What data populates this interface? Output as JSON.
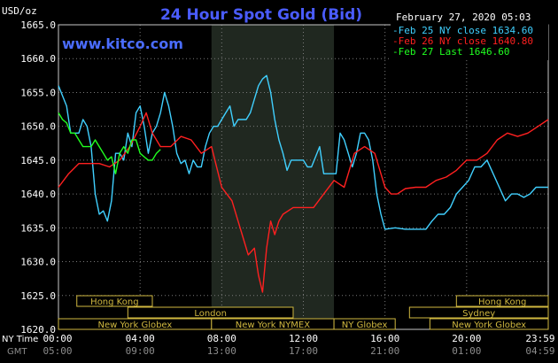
{
  "chart_data": {
    "type": "line",
    "title": "24 Hour Spot Gold (Bid)",
    "watermark": "www.kitco.com",
    "unit_label": "USD/oz",
    "timestamp": "February 27, 2020 05:03",
    "ylim": [
      1620,
      1665
    ],
    "y_ticks": [
      "1665.0",
      "1660.0",
      "1655.0",
      "1650.0",
      "1645.0",
      "1640.0",
      "1635.0",
      "1630.0",
      "1625.0",
      "1620.0"
    ],
    "x_row_labels": {
      "ny": "NY Time",
      "gmt": "GMT"
    },
    "x_ticks_ny": [
      "00:00",
      "04:00",
      "08:00",
      "12:00",
      "16:00",
      "20:00",
      "23:59"
    ],
    "x_ticks_gmt": [
      "05:00",
      "09:00",
      "13:00",
      "17:00",
      "21:00",
      "01:00",
      "04:59"
    ],
    "ny_session_hours": [
      7.5,
      13.5
    ],
    "legend": [
      {
        "label": "Feb 25 NY close 1634.60",
        "color": "#40d0ff"
      },
      {
        "label": "Feb 26 NY close 1640.80",
        "color": "#ff2020"
      },
      {
        "label": "Feb 27 Last 1646.60",
        "color": "#20ff20"
      }
    ],
    "markets": [
      {
        "name": "Hong Kong",
        "start": 0.9,
        "end": 4.6,
        "row": 0
      },
      {
        "name": "London",
        "start": 3.4,
        "end": 11.5,
        "row": 1
      },
      {
        "name": "New York Globex",
        "start": 0,
        "end": 7.5,
        "row": 2
      },
      {
        "name": "New York NYMEX",
        "start": 7.5,
        "end": 13.5,
        "row": 2
      },
      {
        "name": "NY Globex",
        "start": 13.5,
        "end": 16.5,
        "row": 2
      },
      {
        "name": "Hong Kong",
        "start": 19.5,
        "end": 24,
        "row": 0
      },
      {
        "name": "Sydney",
        "start": 17.2,
        "end": 24,
        "row": 1
      },
      {
        "name": "New York Globex",
        "start": 18.2,
        "end": 24,
        "row": 2
      }
    ],
    "series": [
      {
        "name": "Feb 25 NY close 1634.60",
        "color": "#40d0ff",
        "x": [
          0,
          0.2,
          0.4,
          0.6,
          0.8,
          1.0,
          1.2,
          1.4,
          1.6,
          1.8,
          2.0,
          2.2,
          2.4,
          2.6,
          2.8,
          3.0,
          3.2,
          3.4,
          3.6,
          3.8,
          4.0,
          4.2,
          4.4,
          4.6,
          4.8,
          5.0,
          5.2,
          5.4,
          5.6,
          5.8,
          6.0,
          6.2,
          6.4,
          6.6,
          6.8,
          7.0,
          7.2,
          7.4,
          7.6,
          7.8,
          8.0,
          8.2,
          8.4,
          8.6,
          8.8,
          9.0,
          9.2,
          9.4,
          9.6,
          9.8,
          10.0,
          10.2,
          10.4,
          10.6,
          10.8,
          11.0,
          11.2,
          11.4,
          11.6,
          11.8,
          12.0,
          12.2,
          12.4,
          12.6,
          12.8,
          13.0,
          13.2,
          13.4,
          13.6,
          13.8,
          14.0,
          14.2,
          14.4,
          14.6,
          14.8,
          15.0,
          15.2,
          15.4,
          15.6,
          15.8,
          16.0,
          16.5,
          17.0,
          17.5,
          18.0,
          18.3,
          18.6,
          18.9,
          19.2,
          19.5,
          19.8,
          20.1,
          20.4,
          20.7,
          21.0,
          21.3,
          21.6,
          21.9,
          22.2,
          22.5,
          22.8,
          23.1,
          23.4,
          23.7,
          24.0
        ],
        "y": [
          1656,
          1654.5,
          1653,
          1649,
          1649,
          1649,
          1651,
          1650,
          1647,
          1640,
          1637,
          1637.5,
          1636,
          1639,
          1646,
          1646,
          1645,
          1649,
          1647,
          1652,
          1653,
          1650,
          1646,
          1649,
          1650,
          1652,
          1655,
          1653,
          1650,
          1646,
          1644.5,
          1645,
          1643,
          1645,
          1644,
          1644,
          1647,
          1649,
          1650,
          1650,
          1651,
          1652,
          1653,
          1650,
          1651,
          1651,
          1651,
          1652,
          1654,
          1656,
          1657,
          1657.5,
          1655,
          1651,
          1648,
          1646,
          1643.5,
          1645,
          1645,
          1645,
          1645,
          1644,
          1644,
          1645.5,
          1647,
          1643,
          1643,
          1643,
          1643,
          1649,
          1648,
          1646,
          1644,
          1646,
          1649,
          1649,
          1648,
          1645,
          1640,
          1637,
          1634.8,
          1635,
          1634.8,
          1634.8,
          1634.8,
          1636,
          1637,
          1637,
          1638,
          1640,
          1641,
          1642,
          1644,
          1644,
          1645,
          1643,
          1641,
          1639,
          1640,
          1640,
          1639.5,
          1640,
          1641,
          1641,
          1641
        ]
      },
      {
        "name": "Feb 26 NY close 1640.80",
        "color": "#ff2020",
        "x": [
          0,
          0.5,
          1.0,
          1.5,
          2.0,
          2.5,
          3.0,
          3.5,
          4.0,
          4.3,
          4.6,
          5.0,
          5.5,
          6.0,
          6.5,
          7.0,
          7.5,
          8.0,
          8.5,
          9.0,
          9.3,
          9.6,
          9.8,
          10.0,
          10.2,
          10.4,
          10.6,
          10.8,
          11.0,
          11.5,
          12.0,
          12.5,
          13.0,
          13.5,
          14.0,
          14.5,
          15.0,
          15.5,
          16.0,
          16.3,
          16.6,
          17.0,
          17.5,
          18.0,
          18.5,
          19.0,
          19.5,
          20.0,
          20.5,
          21.0,
          21.5,
          22.0,
          22.5,
          23.0,
          23.5,
          24.0
        ],
        "y": [
          1641,
          1643,
          1644.5,
          1644.5,
          1644.5,
          1644,
          1645,
          1647,
          1650,
          1652,
          1649,
          1647,
          1647,
          1648.5,
          1648,
          1646,
          1647,
          1641,
          1639,
          1634,
          1631,
          1632,
          1628,
          1625.5,
          1632,
          1636,
          1634,
          1636,
          1637,
          1638,
          1638,
          1638,
          1640,
          1642,
          1641,
          1646,
          1647,
          1646,
          1641,
          1640,
          1640,
          1640.8,
          1641,
          1641,
          1642,
          1642.5,
          1643.5,
          1645,
          1645,
          1646,
          1648,
          1649,
          1648.5,
          1649,
          1650,
          1651
        ]
      },
      {
        "name": "Feb 27 Last 1646.60",
        "color": "#20ff20",
        "x": [
          0,
          0.2,
          0.4,
          0.6,
          0.8,
          1.0,
          1.2,
          1.4,
          1.6,
          1.8,
          2.0,
          2.2,
          2.4,
          2.6,
          2.8,
          3.0,
          3.2,
          3.4,
          3.6,
          3.8,
          4.0,
          4.2,
          4.4,
          4.6,
          4.8,
          5.0
        ],
        "y": [
          1652,
          1651,
          1650.5,
          1649,
          1649,
          1648,
          1647,
          1647,
          1647,
          1648,
          1647,
          1646,
          1645,
          1645.5,
          1643,
          1646,
          1647,
          1646,
          1648,
          1648,
          1646,
          1645.5,
          1645,
          1645,
          1646,
          1646.6
        ]
      }
    ]
  }
}
